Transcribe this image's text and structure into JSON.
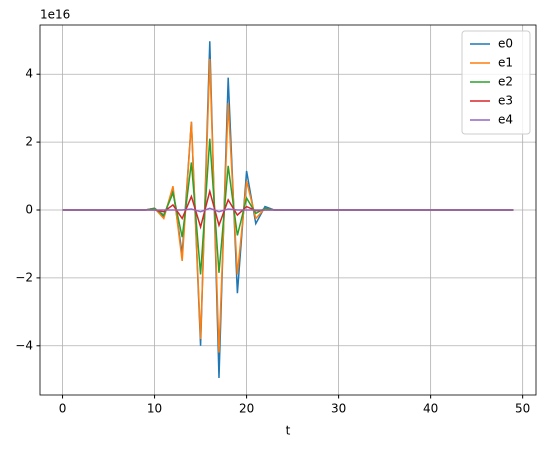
{
  "chart_data": {
    "type": "line",
    "x_label": "t",
    "y_offset_label": "1e16",
    "x": [
      0,
      1,
      2,
      3,
      4,
      5,
      6,
      7,
      8,
      9,
      10,
      11,
      12,
      13,
      14,
      15,
      16,
      17,
      18,
      19,
      20,
      21,
      22,
      23,
      24,
      25,
      26,
      27,
      28,
      29,
      30,
      31,
      32,
      33,
      34,
      35,
      36,
      37,
      38,
      39,
      40,
      41,
      42,
      43,
      44,
      45,
      46,
      47,
      48,
      49
    ],
    "series": [
      {
        "name": "e0",
        "color": "#1f77b4",
        "values": [
          0,
          0,
          0,
          0,
          0,
          0,
          0,
          0,
          0,
          0,
          0.05,
          -0.2,
          0.6,
          -1.3,
          2.6,
          -4.0,
          4.97,
          -4.95,
          3.9,
          -2.45,
          1.15,
          -0.4,
          0.1,
          0,
          0,
          0,
          0,
          0,
          0,
          0,
          0,
          0,
          0,
          0,
          0,
          0,
          0,
          0,
          0,
          0,
          0,
          0,
          0,
          0,
          0,
          0,
          0,
          0,
          0,
          0
        ]
      },
      {
        "name": "e1",
        "color": "#ff7f0e",
        "values": [
          0,
          0,
          0,
          0,
          0,
          0,
          0,
          0,
          0,
          0,
          0.05,
          -0.25,
          0.7,
          -1.5,
          2.6,
          -3.8,
          4.45,
          -4.2,
          3.15,
          -1.9,
          0.85,
          -0.25,
          0.05,
          0,
          0,
          0,
          0,
          0,
          0,
          0,
          0,
          0,
          0,
          0,
          0,
          0,
          0,
          0,
          0,
          0,
          0,
          0,
          0,
          0,
          0,
          0,
          0,
          0,
          0,
          0
        ]
      },
      {
        "name": "e2",
        "color": "#2ca02c",
        "values": [
          0,
          0,
          0,
          0,
          0,
          0,
          0,
          0,
          0,
          0,
          0.05,
          -0.15,
          0.5,
          -0.8,
          1.4,
          -1.9,
          2.1,
          -1.85,
          1.3,
          -0.75,
          0.35,
          -0.1,
          0.05,
          0,
          0,
          0,
          0,
          0,
          0,
          0,
          0,
          0,
          0,
          0,
          0,
          0,
          0,
          0,
          0,
          0,
          0,
          0,
          0,
          0,
          0,
          0,
          0,
          0,
          0,
          0
        ]
      },
      {
        "name": "e3",
        "color": "#d62728",
        "values": [
          0,
          0,
          0,
          0,
          0,
          0,
          0,
          0,
          0,
          0,
          0,
          -0.05,
          0.15,
          -0.25,
          0.4,
          -0.5,
          0.55,
          -0.45,
          0.3,
          -0.15,
          0.1,
          -0.02,
          0,
          0,
          0,
          0,
          0,
          0,
          0,
          0,
          0,
          0,
          0,
          0,
          0,
          0,
          0,
          0,
          0,
          0,
          0,
          0,
          0,
          0,
          0,
          0,
          0,
          0,
          0,
          0
        ]
      },
      {
        "name": "e4",
        "color": "#9467bd",
        "values": [
          0,
          0,
          0,
          0,
          0,
          0,
          0,
          0,
          0,
          0,
          0,
          0,
          0,
          0,
          0.03,
          -0.05,
          0.05,
          -0.05,
          0.03,
          0,
          0,
          0,
          0,
          0,
          0,
          0,
          0,
          0,
          0,
          0,
          0,
          0,
          0,
          0,
          0,
          0,
          0,
          0,
          0,
          0,
          0,
          0,
          0,
          0,
          0,
          0,
          0,
          0,
          0,
          0
        ]
      }
    ],
    "xlim": [
      -2.45,
      51.45
    ],
    "ylim": [
      -5.45,
      5.45
    ],
    "xticks": [
      0,
      10,
      20,
      30,
      40,
      50
    ],
    "yticks": [
      {
        "value": -4,
        "label": "−4"
      },
      {
        "value": -2,
        "label": "−2"
      },
      0,
      2,
      4
    ],
    "grid": true,
    "legend": "upper-right"
  }
}
